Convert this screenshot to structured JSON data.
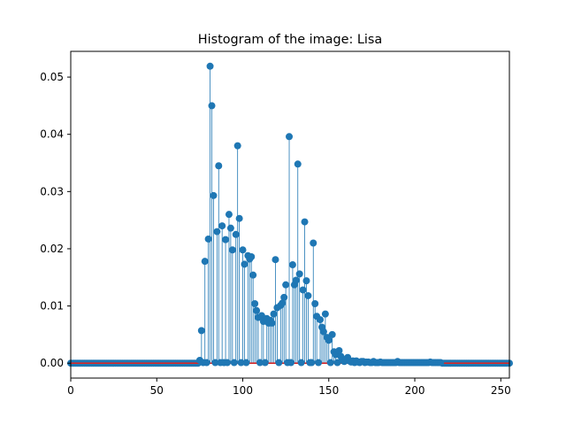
{
  "chart_data": {
    "type": "stem",
    "title": "Histogram of the image: Lisa",
    "xlabel": "",
    "ylabel": "",
    "xlim": [
      0,
      255
    ],
    "ylim": [
      -0.0026,
      0.0545
    ],
    "grid": false,
    "x_ticks": [
      {
        "value": 0,
        "label": "0"
      },
      {
        "value": 50,
        "label": "50"
      },
      {
        "value": 100,
        "label": "100"
      },
      {
        "value": 150,
        "label": "150"
      },
      {
        "value": 200,
        "label": "200"
      },
      {
        "value": 250,
        "label": "250"
      }
    ],
    "y_ticks": [
      {
        "value": 0.0,
        "label": "0.00"
      },
      {
        "value": 0.01,
        "label": "0.01"
      },
      {
        "value": 0.02,
        "label": "0.02"
      },
      {
        "value": 0.03,
        "label": "0.03"
      },
      {
        "value": 0.04,
        "label": "0.04"
      },
      {
        "value": 0.05,
        "label": "0.05"
      }
    ],
    "colors": {
      "marker": "#1f77b4",
      "stem": "#1f77b4",
      "baseline": "#d62728",
      "axes": "#000000"
    },
    "x": [
      75,
      76,
      77,
      78,
      79,
      80,
      81,
      82,
      83,
      84,
      85,
      86,
      87,
      88,
      89,
      90,
      91,
      92,
      93,
      94,
      95,
      96,
      97,
      98,
      99,
      100,
      101,
      102,
      103,
      104,
      105,
      106,
      107,
      108,
      109,
      110,
      111,
      112,
      113,
      114,
      115,
      116,
      117,
      118,
      119,
      120,
      121,
      122,
      123,
      124,
      125,
      126,
      127,
      128,
      129,
      130,
      131,
      132,
      133,
      134,
      135,
      136,
      137,
      138,
      139,
      140,
      141,
      142,
      143,
      144,
      145,
      146,
      147,
      148,
      149,
      150,
      151,
      152,
      153,
      154,
      155,
      156,
      157,
      158,
      159,
      160,
      161,
      162,
      163,
      164,
      165,
      166,
      167,
      168,
      169,
      170,
      171,
      172,
      173,
      174,
      175,
      176,
      177,
      178,
      179,
      180,
      181,
      182,
      183,
      184,
      185,
      186,
      187,
      188,
      189,
      190,
      191,
      192,
      193,
      194,
      195,
      196,
      197,
      198,
      199,
      200,
      201,
      202,
      203,
      204,
      205,
      206,
      207,
      208,
      209,
      210,
      211,
      212,
      213,
      214,
      215
    ],
    "y": [
      0.0005,
      0.0057,
      0.0001,
      0.0178,
      0.0001,
      0.0217,
      0.0519,
      0.045,
      0.0293,
      0.0001,
      0.023,
      0.0345,
      0.0001,
      0.024,
      0.0001,
      0.0216,
      0.0001,
      0.026,
      0.0236,
      0.0198,
      0.0001,
      0.0225,
      0.038,
      0.0253,
      0.0001,
      0.0198,
      0.0173,
      0.0001,
      0.0188,
      0.0182,
      0.0186,
      0.0154,
      0.0104,
      0.0092,
      0.008,
      0.0001,
      0.0083,
      0.0073,
      0.0001,
      0.0078,
      0.007,
      0.0075,
      0.007,
      0.0086,
      0.0181,
      0.0097,
      0.0001,
      0.0101,
      0.0105,
      0.0115,
      0.0137,
      0.0001,
      0.0396,
      0.0001,
      0.0172,
      0.0137,
      0.0145,
      0.0348,
      0.0156,
      0.0001,
      0.0128,
      0.0247,
      0.0144,
      0.0118,
      0.0001,
      0.0001,
      0.021,
      0.0104,
      0.0082,
      0.0001,
      0.0076,
      0.0063,
      0.0055,
      0.0086,
      0.0045,
      0.004,
      0.0001,
      0.005,
      0.002,
      0.0015,
      0.0001,
      0.0022,
      0.0012,
      0.0005,
      0.0003,
      0.0007,
      0.001,
      0.0004,
      0.0002,
      0.0004,
      0.0001,
      0.0004,
      0.0002,
      0.0001,
      0.0003,
      0.0003,
      0.0001,
      0.0002,
      0.0002,
      0.0001,
      0.0001,
      0.0003,
      0.0001,
      0.0001,
      0.0001,
      0.0002,
      0.0001,
      0.0001,
      0.0001,
      0.0001,
      0.0001,
      0.0001,
      0.0001,
      0.0001,
      0.0001,
      0.0003,
      0.0001,
      0.0001,
      0.0001,
      0.0001,
      0.0001,
      0.0001,
      0.0001,
      0.0001,
      0.0001,
      0.0001,
      0.0001,
      0.0001,
      0.0001,
      0.0001,
      0.0001,
      0.0001,
      0.0001,
      0.0001,
      0.0002,
      0.0001,
      0.0001,
      0.0001,
      0.0001,
      0.0001,
      0.0001
    ]
  }
}
